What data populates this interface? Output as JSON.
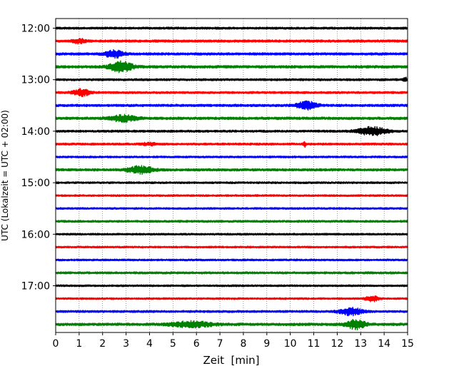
{
  "chart_data": {
    "type": "line",
    "title": "",
    "xlabel": "Zeit  [min]",
    "ylabel": "UTC (Lokalzeit = UTC + 02:00)",
    "xlim": [
      0,
      15
    ],
    "x_ticks": [
      "0",
      "1",
      "2",
      "3",
      "4",
      "5",
      "6",
      "7",
      "8",
      "9",
      "10",
      "11",
      "12",
      "13",
      "14",
      "15"
    ],
    "y_ticks": [
      "12:00",
      "13:00",
      "14:00",
      "15:00",
      "16:00",
      "17:00"
    ],
    "row_start": "12:00",
    "row_interval_min": 15,
    "grid": true,
    "colors": [
      "#000000",
      "#ff0000",
      "#0000ff",
      "#008000"
    ],
    "series": [
      {
        "start": "12:00",
        "color": "#000000",
        "noise": 0.25,
        "events": []
      },
      {
        "start": "12:15",
        "color": "#ff0000",
        "noise": 0.28,
        "events": [
          {
            "t": 1.0,
            "amp": 0.5,
            "width": 0.4
          }
        ]
      },
      {
        "start": "12:30",
        "color": "#0000ff",
        "noise": 0.28,
        "events": [
          {
            "t": 2.5,
            "amp": 0.8,
            "width": 0.6
          }
        ]
      },
      {
        "start": "12:45",
        "color": "#008000",
        "noise": 0.3,
        "events": [
          {
            "t": 2.8,
            "amp": 1.2,
            "width": 0.7
          }
        ]
      },
      {
        "start": "13:00",
        "color": "#000000",
        "noise": 0.25,
        "events": [
          {
            "t": 14.9,
            "amp": 0.6,
            "width": 0.1
          }
        ]
      },
      {
        "start": "13:15",
        "color": "#ff0000",
        "noise": 0.25,
        "events": [
          {
            "t": 1.1,
            "amp": 0.8,
            "width": 0.5
          }
        ]
      },
      {
        "start": "13:30",
        "color": "#0000ff",
        "noise": 0.28,
        "events": [
          {
            "t": 10.7,
            "amp": 0.9,
            "width": 0.6
          }
        ]
      },
      {
        "start": "13:45",
        "color": "#008000",
        "noise": 0.3,
        "events": [
          {
            "t": 2.9,
            "amp": 0.7,
            "width": 0.8
          }
        ]
      },
      {
        "start": "14:00",
        "color": "#000000",
        "noise": 0.25,
        "events": [
          {
            "t": 13.5,
            "amp": 0.9,
            "width": 0.9
          }
        ]
      },
      {
        "start": "14:15",
        "color": "#ff0000",
        "noise": 0.25,
        "events": [
          {
            "t": 10.6,
            "amp": 0.6,
            "width": 0.1
          },
          {
            "t": 4.0,
            "amp": 0.25,
            "width": 0.5
          }
        ]
      },
      {
        "start": "14:30",
        "color": "#0000ff",
        "noise": 0.22,
        "events": []
      },
      {
        "start": "14:45",
        "color": "#008000",
        "noise": 0.28,
        "events": [
          {
            "t": 3.6,
            "amp": 0.8,
            "width": 0.8
          }
        ]
      },
      {
        "start": "15:00",
        "color": "#000000",
        "noise": 0.22,
        "events": []
      },
      {
        "start": "15:15",
        "color": "#ff0000",
        "noise": 0.22,
        "events": []
      },
      {
        "start": "15:30",
        "color": "#0000ff",
        "noise": 0.22,
        "events": []
      },
      {
        "start": "15:45",
        "color": "#008000",
        "noise": 0.25,
        "events": []
      },
      {
        "start": "16:00",
        "color": "#000000",
        "noise": 0.22,
        "events": []
      },
      {
        "start": "16:15",
        "color": "#ff0000",
        "noise": 0.22,
        "events": []
      },
      {
        "start": "16:30",
        "color": "#0000ff",
        "noise": 0.22,
        "events": []
      },
      {
        "start": "16:45",
        "color": "#008000",
        "noise": 0.25,
        "events": []
      },
      {
        "start": "17:00",
        "color": "#000000",
        "noise": 0.22,
        "events": []
      },
      {
        "start": "17:15",
        "color": "#ff0000",
        "noise": 0.22,
        "events": [
          {
            "t": 13.5,
            "amp": 0.6,
            "width": 0.4
          }
        ]
      },
      {
        "start": "17:30",
        "color": "#0000ff",
        "noise": 0.25,
        "events": [
          {
            "t": 12.6,
            "amp": 0.8,
            "width": 0.7
          }
        ]
      },
      {
        "start": "17:45",
        "color": "#008000",
        "noise": 0.3,
        "events": [
          {
            "t": 5.8,
            "amp": 0.6,
            "width": 1.3
          },
          {
            "t": 12.8,
            "amp": 1.0,
            "width": 0.6
          }
        ]
      }
    ]
  }
}
